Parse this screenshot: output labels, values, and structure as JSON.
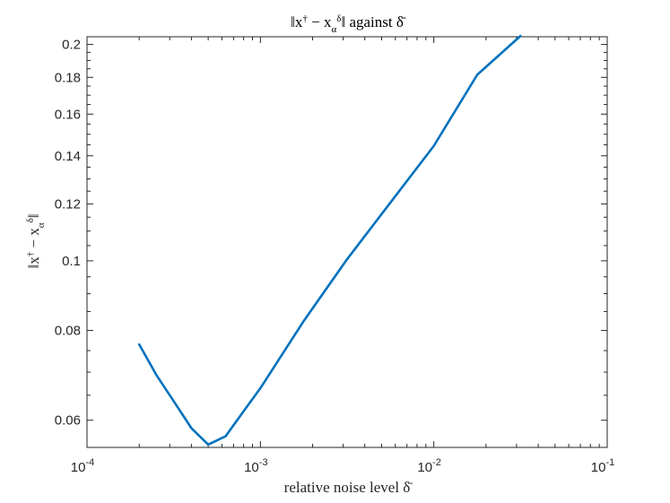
{
  "chart_data": {
    "type": "line",
    "title": "‖x† − xαδ‖ against δ̄",
    "xlabel": "relative noise level δ̄",
    "ylabel": "‖x† − xαδ‖",
    "x_scale": "log",
    "y_scale": "log",
    "xlim": [
      0.0001,
      0.1
    ],
    "ylim": [
      0.055,
      0.205
    ],
    "x_ticks": [
      {
        "value": 0.0001,
        "base": "10",
        "exp": "-4"
      },
      {
        "value": 0.001,
        "base": "10",
        "exp": "-3"
      },
      {
        "value": 0.01,
        "base": "10",
        "exp": "-2"
      },
      {
        "value": 0.1,
        "base": "10",
        "exp": "-1"
      }
    ],
    "y_ticks": [
      {
        "value": 0.06,
        "label": "0.06"
      },
      {
        "value": 0.08,
        "label": "0.08"
      },
      {
        "value": 0.1,
        "label": "0.1"
      },
      {
        "value": 0.12,
        "label": "0.12"
      },
      {
        "value": 0.14,
        "label": "0.14"
      },
      {
        "value": 0.16,
        "label": "0.16"
      },
      {
        "value": 0.18,
        "label": "0.18"
      },
      {
        "value": 0.2,
        "label": "0.2"
      }
    ],
    "grid": false,
    "line_color": "#0072BD",
    "series": [
      {
        "x": [
          0.0002,
          0.00025,
          0.00032,
          0.0004,
          0.0005,
          0.00063,
          0.00079,
          0.001,
          0.00126,
          0.00178,
          0.00316,
          0.00562,
          0.01,
          0.0178,
          0.0316
        ],
        "y": [
          0.0765,
          0.0695,
          0.0635,
          0.0585,
          0.0555,
          0.057,
          0.0615,
          0.0665,
          0.0725,
          0.0825,
          0.1005,
          0.1205,
          0.1445,
          0.1815,
          0.2055
        ]
      }
    ]
  }
}
